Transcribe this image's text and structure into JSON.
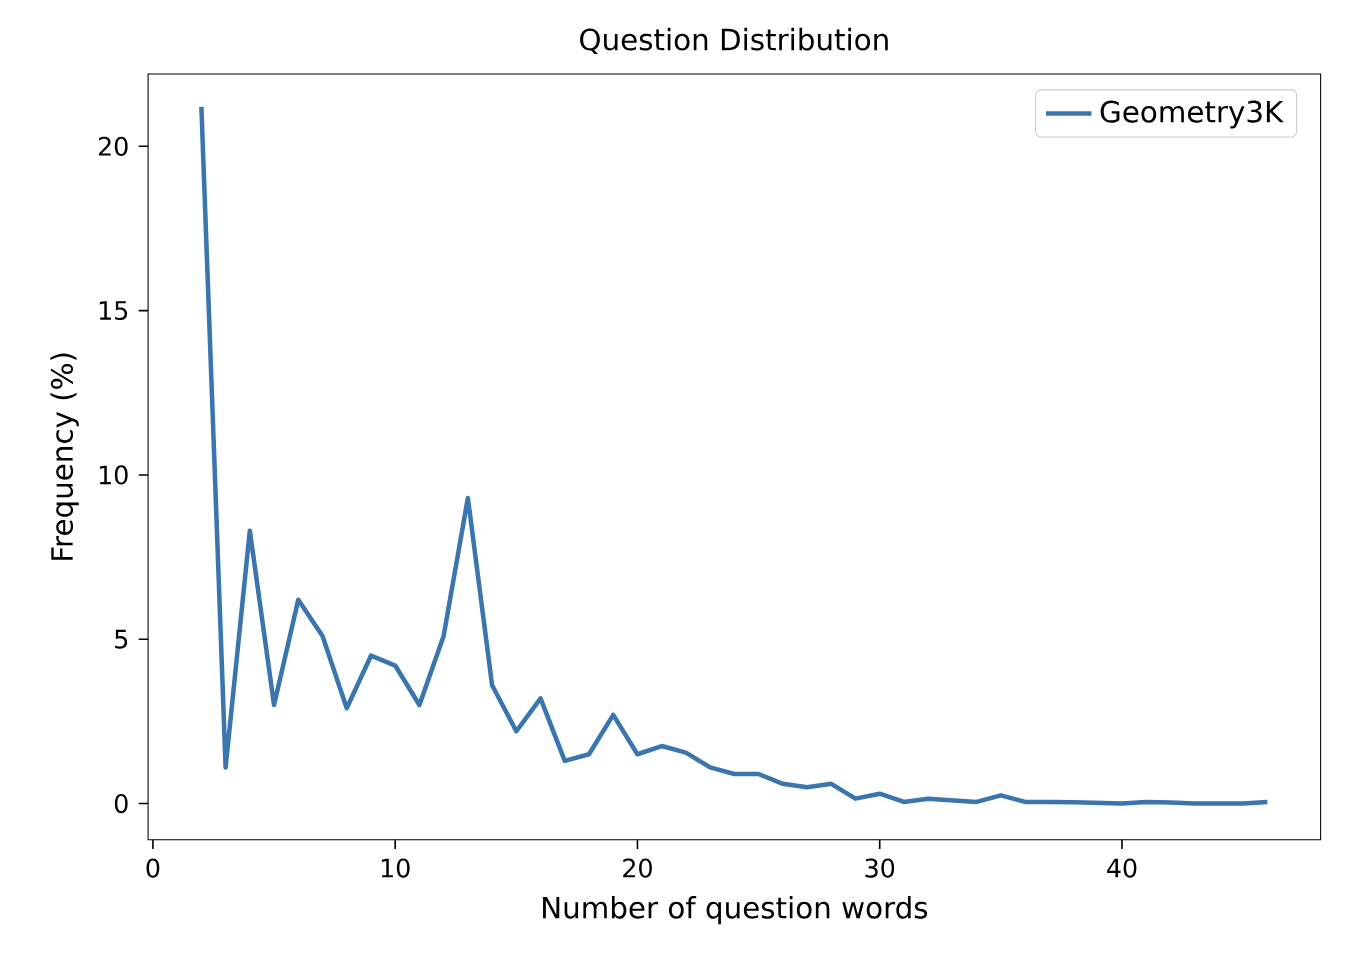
{
  "chart_data": {
    "type": "line",
    "title": "Question Distribution",
    "xlabel": "Number of question words",
    "ylabel": "Frequency (%)",
    "x": [
      2,
      3,
      4,
      5,
      6,
      7,
      8,
      9,
      10,
      11,
      12,
      13,
      14,
      15,
      16,
      17,
      18,
      19,
      20,
      21,
      22,
      23,
      24,
      25,
      26,
      27,
      28,
      29,
      30,
      31,
      32,
      33,
      34,
      35,
      36,
      37,
      38,
      39,
      40,
      41,
      42,
      43,
      44,
      45,
      46
    ],
    "series": [
      {
        "name": "Geometry3K",
        "color": "#3a75ae",
        "values": [
          21.2,
          1.1,
          8.3,
          3.0,
          6.2,
          5.1,
          2.9,
          4.5,
          4.2,
          3.0,
          5.1,
          9.3,
          3.6,
          2.2,
          3.2,
          1.3,
          1.5,
          2.7,
          1.5,
          1.75,
          1.55,
          1.1,
          0.9,
          0.9,
          0.6,
          0.5,
          0.6,
          0.15,
          0.3,
          0.05,
          0.15,
          0.1,
          0.05,
          0.25,
          0.05,
          0.05,
          0.04,
          0.02,
          0.0,
          0.05,
          0.03,
          0.0,
          0.0,
          0.0,
          0.05
        ]
      }
    ],
    "xlim": [
      -0.2,
      48.2
    ],
    "ylim": [
      -1.1,
      22.2
    ],
    "xticks": [
      0,
      10,
      20,
      30,
      40
    ],
    "yticks": [
      0,
      5,
      10,
      15,
      20
    ],
    "grid": false,
    "legend": "top right",
    "line_style": "solid",
    "marker": "none"
  }
}
